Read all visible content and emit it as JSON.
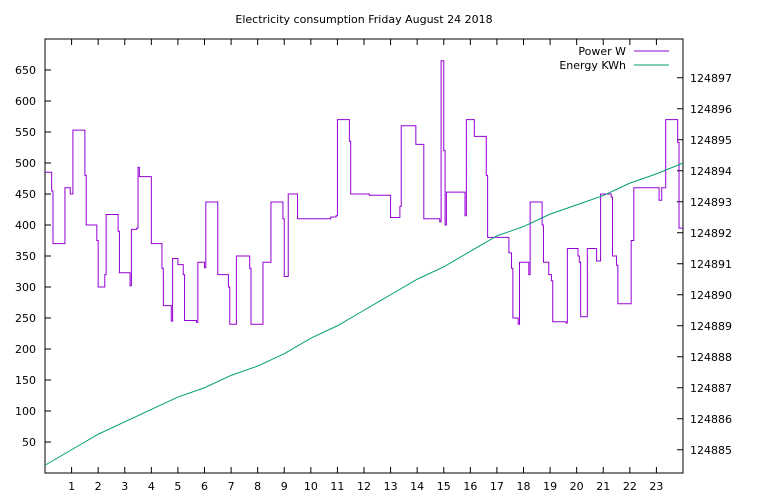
{
  "chart_data": {
    "type": "line",
    "title": "Electricity consumption Friday August 24 2018",
    "xlabel": "",
    "ylabel": "",
    "xlim": [
      0,
      24
    ],
    "xticks": [
      1,
      2,
      3,
      4,
      5,
      6,
      7,
      8,
      9,
      10,
      11,
      12,
      13,
      14,
      15,
      16,
      17,
      18,
      19,
      20,
      21,
      22,
      23
    ],
    "ylim": [
      0,
      700
    ],
    "yticks": [
      50,
      100,
      150,
      200,
      250,
      300,
      350,
      400,
      450,
      500,
      550,
      600,
      650
    ],
    "y2lim": [
      124884.25,
      124898.25
    ],
    "y2ticks": [
      124885,
      124886,
      124887,
      124888,
      124889,
      124890,
      124891,
      124892,
      124893,
      124894,
      124895,
      124896,
      124897
    ],
    "grid": false,
    "legend_position": "top-right",
    "series": [
      {
        "name": "Power W",
        "axis": "left",
        "color": "#9400d3",
        "step": true,
        "points": [
          [
            0,
            485
          ],
          [
            0.25,
            455
          ],
          [
            0.3,
            370
          ],
          [
            0.75,
            460
          ],
          [
            0.95,
            450
          ],
          [
            1.05,
            553
          ],
          [
            1.5,
            480
          ],
          [
            1.55,
            400
          ],
          [
            1.95,
            375
          ],
          [
            2.0,
            300
          ],
          [
            2.25,
            320
          ],
          [
            2.3,
            417
          ],
          [
            2.75,
            390
          ],
          [
            2.8,
            323
          ],
          [
            3.2,
            302
          ],
          [
            3.25,
            393
          ],
          [
            3.45,
            395
          ],
          [
            3.5,
            493
          ],
          [
            3.55,
            478
          ],
          [
            4.0,
            370
          ],
          [
            4.4,
            330
          ],
          [
            4.45,
            270
          ],
          [
            4.75,
            245
          ],
          [
            4.8,
            346
          ],
          [
            5.0,
            336
          ],
          [
            5.2,
            320
          ],
          [
            5.25,
            246
          ],
          [
            5.7,
            243
          ],
          [
            5.75,
            340
          ],
          [
            6.0,
            331
          ],
          [
            6.05,
            437
          ],
          [
            6.5,
            320
          ],
          [
            6.9,
            300
          ],
          [
            6.95,
            240
          ],
          [
            7.2,
            350
          ],
          [
            7.7,
            330
          ],
          [
            7.75,
            240
          ],
          [
            8.2,
            340
          ],
          [
            8.45,
            340
          ],
          [
            8.5,
            437
          ],
          [
            8.95,
            410
          ],
          [
            9.0,
            317
          ],
          [
            9.15,
            450
          ],
          [
            9.5,
            410
          ],
          [
            10.75,
            413
          ],
          [
            10.95,
            415
          ],
          [
            11.0,
            570
          ],
          [
            11.45,
            535
          ],
          [
            11.5,
            450
          ],
          [
            12.2,
            448
          ],
          [
            12.3,
            448
          ],
          [
            12.95,
            448
          ],
          [
            13.0,
            412
          ],
          [
            13.35,
            430
          ],
          [
            13.4,
            560
          ],
          [
            13.95,
            530
          ],
          [
            14.2,
            530
          ],
          [
            14.25,
            410
          ],
          [
            14.85,
            405
          ],
          [
            14.9,
            665
          ],
          [
            15.0,
            520
          ],
          [
            15.05,
            400
          ],
          [
            15.1,
            453
          ],
          [
            15.8,
            415
          ],
          [
            15.85,
            570
          ],
          [
            16.15,
            543
          ],
          [
            16.6,
            480
          ],
          [
            16.65,
            380
          ],
          [
            17.45,
            355
          ],
          [
            17.55,
            330
          ],
          [
            17.6,
            250
          ],
          [
            17.8,
            240
          ],
          [
            17.85,
            340
          ],
          [
            18.2,
            320
          ],
          [
            18.25,
            437
          ],
          [
            18.7,
            400
          ],
          [
            18.75,
            340
          ],
          [
            18.95,
            320
          ],
          [
            19.05,
            310
          ],
          [
            19.1,
            244
          ],
          [
            19.6,
            242
          ],
          [
            19.65,
            362
          ],
          [
            20.05,
            350
          ],
          [
            20.1,
            340
          ],
          [
            20.15,
            252
          ],
          [
            20.4,
            362
          ],
          [
            20.75,
            342
          ],
          [
            20.9,
            450
          ],
          [
            21.3,
            445
          ],
          [
            21.35,
            350
          ],
          [
            21.5,
            335
          ],
          [
            21.55,
            273
          ],
          [
            22.0,
            273
          ],
          [
            22.05,
            375
          ],
          [
            22.15,
            460
          ],
          [
            23.1,
            440
          ],
          [
            23.2,
            460
          ],
          [
            23.35,
            570
          ],
          [
            23.8,
            533
          ],
          [
            23.85,
            395
          ],
          [
            24.0,
            395
          ]
        ]
      },
      {
        "name": "Energy KWh",
        "axis": "right",
        "color": "#009e73",
        "step": false,
        "points": [
          [
            0,
            124884.5
          ],
          [
            1,
            124885.0
          ],
          [
            2,
            124885.5
          ],
          [
            3,
            124885.9
          ],
          [
            4,
            124886.3
          ],
          [
            5,
            124886.7
          ],
          [
            6,
            124887.0
          ],
          [
            7,
            124887.4
          ],
          [
            8,
            124887.7
          ],
          [
            9,
            124888.1
          ],
          [
            10,
            124888.6
          ],
          [
            11,
            124889.0
          ],
          [
            12,
            124889.5
          ],
          [
            13,
            124890.0
          ],
          [
            14,
            124890.5
          ],
          [
            15,
            124890.9
          ],
          [
            16,
            124891.4
          ],
          [
            17,
            124891.9
          ],
          [
            18,
            124892.2
          ],
          [
            19,
            124892.6
          ],
          [
            20,
            124892.9
          ],
          [
            21,
            124893.2
          ],
          [
            22,
            124893.6
          ],
          [
            23,
            124893.9
          ],
          [
            24,
            124894.25
          ]
        ]
      }
    ]
  }
}
